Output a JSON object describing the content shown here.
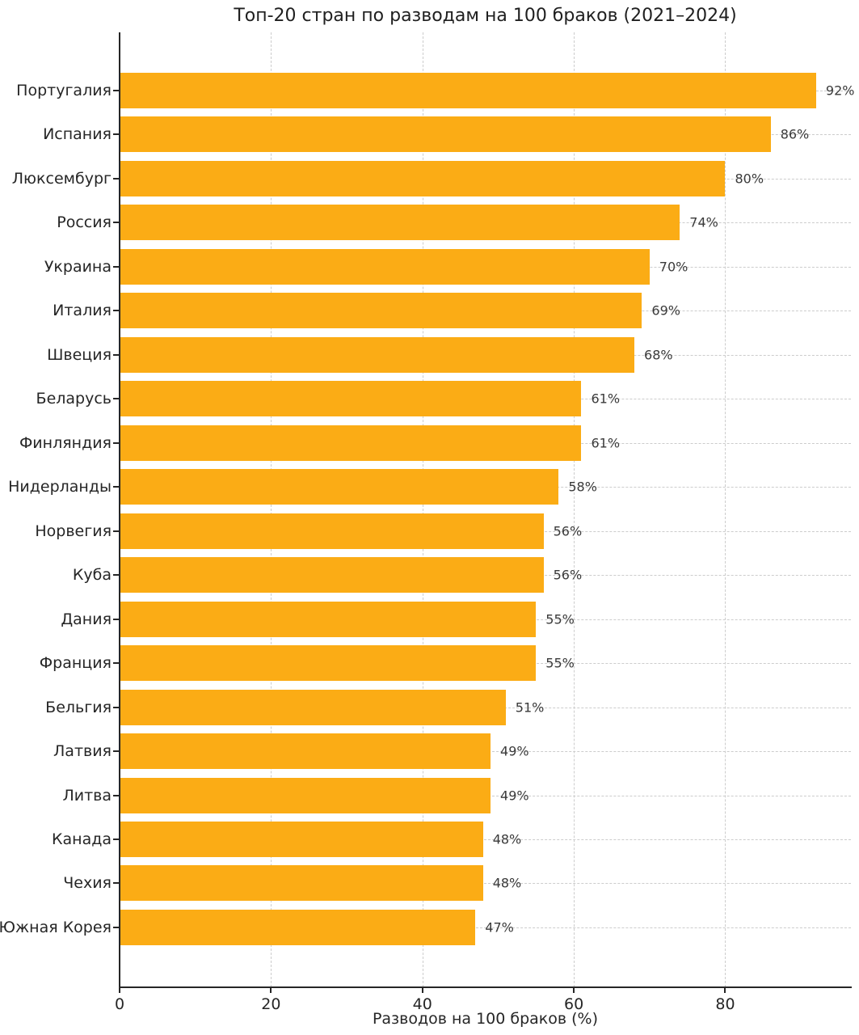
{
  "chart_data": {
    "type": "bar",
    "orientation": "horizontal",
    "title": "Топ-20 стран по разводам на 100 браков (2021–2024)",
    "xlabel": "Разводов на 100 браков (%)",
    "categories": [
      "Португалия",
      "Испания",
      "Люксембург",
      "Россия",
      "Украина",
      "Италия",
      "Швеция",
      "Беларусь",
      "Финляндия",
      "Нидерланды",
      "Норвегия",
      "Куба",
      "Дания",
      "Франция",
      "Бельгия",
      "Латвия",
      "Литва",
      "Канада",
      "Чехия",
      "Южная Корея"
    ],
    "values": [
      92,
      86,
      80,
      74,
      70,
      69,
      68,
      61,
      61,
      58,
      56,
      56,
      55,
      55,
      51,
      49,
      49,
      48,
      48,
      47
    ],
    "value_labels": [
      "92%",
      "86%",
      "80%",
      "74%",
      "70%",
      "69%",
      "68%",
      "61%",
      "61%",
      "58%",
      "56%",
      "56%",
      "55%",
      "55%",
      "51%",
      "49%",
      "49%",
      "48%",
      "48%",
      "47%"
    ],
    "xlim": [
      0,
      96.6
    ],
    "xticks": [
      0,
      20,
      40,
      60,
      80
    ],
    "xtick_labels": [
      "0",
      "20",
      "40",
      "60",
      "80"
    ],
    "grid": "dashed, horizontal and vertical, drawn behind bars",
    "legend": "none",
    "bar_color": "#FBAC15",
    "grid_color": "#cccccc",
    "axis_color": "#262626",
    "background": "#ffffff"
  }
}
